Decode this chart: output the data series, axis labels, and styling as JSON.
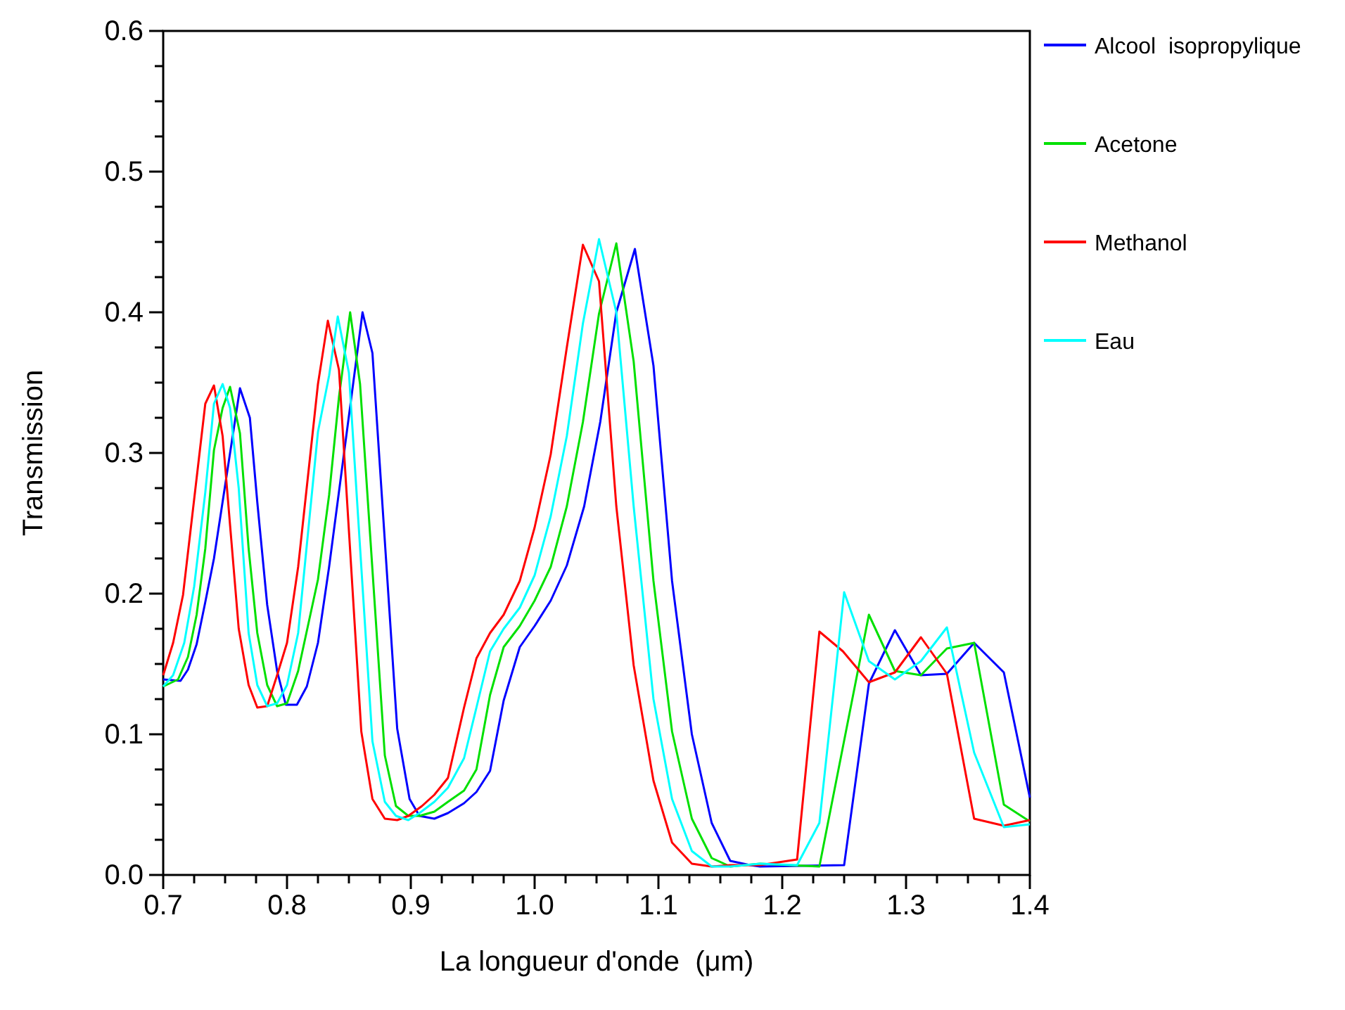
{
  "chart_data": {
    "type": "line",
    "xlabel": "La longueur d'onde  (μm)",
    "ylabel": "Transmission",
    "legend": "top right",
    "grid": false,
    "line_style": "solid",
    "marker": "none",
    "xlim": [
      0.7,
      1.4
    ],
    "ylim": [
      0,
      0.6
    ],
    "xticks": [
      {
        "value": 0.7,
        "label": "0.7"
      },
      {
        "value": 0.725,
        "label": null
      },
      {
        "value": 0.75,
        "label": null
      },
      {
        "value": 0.775,
        "label": null
      },
      {
        "value": 0.8,
        "label": "0.8"
      },
      {
        "value": 0.825,
        "label": null
      },
      {
        "value": 0.85,
        "label": null
      },
      {
        "value": 0.875,
        "label": null
      },
      {
        "value": 0.9,
        "label": "0.9"
      },
      {
        "value": 0.925,
        "label": null
      },
      {
        "value": 0.95,
        "label": null
      },
      {
        "value": 0.975,
        "label": null
      },
      {
        "value": 1.0,
        "label": "1.0"
      },
      {
        "value": 1.025,
        "label": null
      },
      {
        "value": 1.05,
        "label": null
      },
      {
        "value": 1.075,
        "label": null
      },
      {
        "value": 1.1,
        "label": "1.1"
      },
      {
        "value": 1.125,
        "label": null
      },
      {
        "value": 1.15,
        "label": null
      },
      {
        "value": 1.175,
        "label": null
      },
      {
        "value": 1.2,
        "label": "1.2"
      },
      {
        "value": 1.225,
        "label": null
      },
      {
        "value": 1.25,
        "label": null
      },
      {
        "value": 1.275,
        "label": null
      },
      {
        "value": 1.3,
        "label": "1.3"
      },
      {
        "value": 1.325,
        "label": null
      },
      {
        "value": 1.35,
        "label": null
      },
      {
        "value": 1.375,
        "label": null
      },
      {
        "value": 1.4,
        "label": "1.4"
      }
    ],
    "yticks": [
      {
        "value": 0,
        "label": "0.0"
      },
      {
        "value": 0.025,
        "label": null
      },
      {
        "value": 0.05,
        "label": null
      },
      {
        "value": 0.075,
        "label": null
      },
      {
        "value": 0.1,
        "label": "0.1"
      },
      {
        "value": 0.125,
        "label": null
      },
      {
        "value": 0.15,
        "label": null
      },
      {
        "value": 0.175,
        "label": null
      },
      {
        "value": 0.2,
        "label": "0.2"
      },
      {
        "value": 0.225,
        "label": null
      },
      {
        "value": 0.25,
        "label": null
      },
      {
        "value": 0.275,
        "label": null
      },
      {
        "value": 0.3,
        "label": "0.3"
      },
      {
        "value": 0.325,
        "label": null
      },
      {
        "value": 0.35,
        "label": null
      },
      {
        "value": 0.375,
        "label": null
      },
      {
        "value": 0.4,
        "label": "0.4"
      },
      {
        "value": 0.425,
        "label": null
      },
      {
        "value": 0.45,
        "label": null
      },
      {
        "value": 0.475,
        "label": null
      },
      {
        "value": 0.5,
        "label": "0.5"
      },
      {
        "value": 0.525,
        "label": null
      },
      {
        "value": 0.55,
        "label": null
      },
      {
        "value": 0.575,
        "label": null
      },
      {
        "value": 0.6,
        "label": "0.6"
      }
    ],
    "series": [
      {
        "name": "Alcool  isopropylique",
        "color": "#0000ff",
        "x": [
          0.7,
          0.714,
          0.72,
          0.727,
          0.734,
          0.741,
          0.762,
          0.77,
          0.776,
          0.784,
          0.792,
          0.799,
          0.808,
          0.816,
          0.825,
          0.834,
          0.861,
          0.869,
          0.889,
          0.899,
          0.907,
          0.919,
          0.93,
          0.943,
          0.953,
          0.964,
          0.975,
          0.988,
          1.0,
          1.013,
          1.026,
          1.04,
          1.053,
          1.066,
          1.081,
          1.096,
          1.111,
          1.127,
          1.143,
          1.158,
          1.174,
          1.182,
          1.25,
          1.27,
          1.291,
          1.312,
          1.333,
          1.355,
          1.379,
          1.4
        ],
        "values": [
          0.139,
          0.138,
          0.146,
          0.164,
          0.194,
          0.225,
          0.346,
          0.325,
          0.265,
          0.192,
          0.145,
          0.121,
          0.121,
          0.134,
          0.165,
          0.219,
          0.4,
          0.371,
          0.104,
          0.054,
          0.042,
          0.04,
          0.044,
          0.051,
          0.059,
          0.074,
          0.124,
          0.162,
          0.177,
          0.195,
          0.22,
          0.262,
          0.322,
          0.4,
          0.445,
          0.362,
          0.209,
          0.1,
          0.037,
          0.01,
          0.007,
          0.006,
          0.007,
          0.136,
          0.174,
          0.142,
          0.143,
          0.165,
          0.144,
          0.055
        ]
      },
      {
        "name": "Acetone",
        "color": "#00e000",
        "x": [
          0.7,
          0.712,
          0.72,
          0.727,
          0.734,
          0.741,
          0.748,
          0.754,
          0.762,
          0.769,
          0.776,
          0.784,
          0.792,
          0.8,
          0.809,
          0.825,
          0.834,
          0.842,
          0.851,
          0.859,
          0.879,
          0.888,
          0.898,
          0.907,
          0.919,
          0.93,
          0.943,
          0.953,
          0.964,
          0.975,
          0.988,
          1.0,
          1.013,
          1.026,
          1.039,
          1.052,
          1.066,
          1.08,
          1.096,
          1.111,
          1.127,
          1.143,
          1.158,
          1.182,
          1.23,
          1.27,
          1.291,
          1.312,
          1.333,
          1.355,
          1.379,
          1.4
        ],
        "values": [
          0.134,
          0.139,
          0.155,
          0.185,
          0.232,
          0.302,
          0.332,
          0.347,
          0.314,
          0.232,
          0.172,
          0.135,
          0.12,
          0.122,
          0.145,
          0.21,
          0.27,
          0.34,
          0.4,
          0.349,
          0.085,
          0.049,
          0.042,
          0.042,
          0.045,
          0.052,
          0.06,
          0.075,
          0.128,
          0.162,
          0.177,
          0.195,
          0.219,
          0.262,
          0.322,
          0.399,
          0.449,
          0.365,
          0.209,
          0.102,
          0.04,
          0.012,
          0.006,
          0.008,
          0.006,
          0.185,
          0.145,
          0.142,
          0.161,
          0.165,
          0.05,
          0.038
        ]
      },
      {
        "name": "Methanol",
        "color": "#ff0000",
        "x": [
          0.7,
          0.708,
          0.716,
          0.734,
          0.741,
          0.748,
          0.761,
          0.769,
          0.776,
          0.784,
          0.792,
          0.8,
          0.809,
          0.825,
          0.833,
          0.842,
          0.86,
          0.869,
          0.879,
          0.889,
          0.898,
          0.909,
          0.919,
          0.93,
          0.943,
          0.953,
          0.964,
          0.975,
          0.988,
          1.0,
          1.013,
          1.026,
          1.039,
          1.052,
          1.066,
          1.08,
          1.096,
          1.111,
          1.127,
          1.143,
          1.158,
          1.182,
          1.212,
          1.23,
          1.249,
          1.27,
          1.291,
          1.312,
          1.333,
          1.355,
          1.379,
          1.4
        ],
        "values": [
          0.142,
          0.165,
          0.199,
          0.335,
          0.348,
          0.312,
          0.175,
          0.135,
          0.119,
          0.12,
          0.142,
          0.165,
          0.219,
          0.349,
          0.394,
          0.359,
          0.102,
          0.054,
          0.04,
          0.039,
          0.042,
          0.049,
          0.057,
          0.069,
          0.119,
          0.154,
          0.172,
          0.185,
          0.209,
          0.247,
          0.299,
          0.375,
          0.448,
          0.422,
          0.262,
          0.149,
          0.067,
          0.023,
          0.008,
          0.006,
          0.007,
          0.007,
          0.011,
          0.173,
          0.159,
          0.137,
          0.144,
          0.169,
          0.143,
          0.04,
          0.035,
          0.039
        ]
      },
      {
        "name": "Eau",
        "color": "#00ffff",
        "x": [
          0.7,
          0.708,
          0.717,
          0.725,
          0.734,
          0.741,
          0.748,
          0.754,
          0.761,
          0.769,
          0.776,
          0.784,
          0.792,
          0.8,
          0.809,
          0.825,
          0.834,
          0.841,
          0.85,
          0.869,
          0.879,
          0.888,
          0.898,
          0.907,
          0.919,
          0.93,
          0.943,
          0.953,
          0.964,
          0.975,
          0.988,
          1.0,
          1.013,
          1.026,
          1.039,
          1.052,
          1.066,
          1.08,
          1.096,
          1.111,
          1.127,
          1.143,
          1.158,
          1.182,
          1.212,
          1.23,
          1.25,
          1.27,
          1.291,
          1.312,
          1.333,
          1.355,
          1.379,
          1.4
        ],
        "values": [
          0.134,
          0.142,
          0.165,
          0.205,
          0.272,
          0.335,
          0.349,
          0.332,
          0.275,
          0.172,
          0.135,
          0.12,
          0.122,
          0.135,
          0.172,
          0.315,
          0.355,
          0.397,
          0.357,
          0.095,
          0.052,
          0.042,
          0.039,
          0.044,
          0.052,
          0.062,
          0.083,
          0.119,
          0.159,
          0.175,
          0.19,
          0.213,
          0.255,
          0.312,
          0.392,
          0.452,
          0.4,
          0.262,
          0.125,
          0.054,
          0.017,
          0.006,
          0.006,
          0.008,
          0.007,
          0.037,
          0.201,
          0.152,
          0.139,
          0.152,
          0.176,
          0.087,
          0.034,
          0.036
        ]
      }
    ]
  }
}
